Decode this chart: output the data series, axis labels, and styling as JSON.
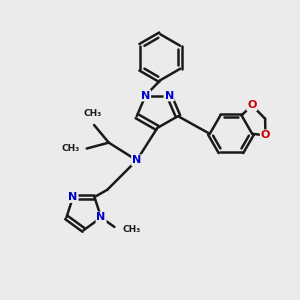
{
  "bg_color": "#ebebeb",
  "bond_color": "#1a1a1a",
  "n_color": "#0000cc",
  "o_color": "#cc0000",
  "lw": 1.8,
  "dbo": 0.12,
  "figsize": [
    3.0,
    3.0
  ],
  "dpi": 100,
  "xlim": [
    0,
    10
  ],
  "ylim": [
    0,
    10
  ]
}
